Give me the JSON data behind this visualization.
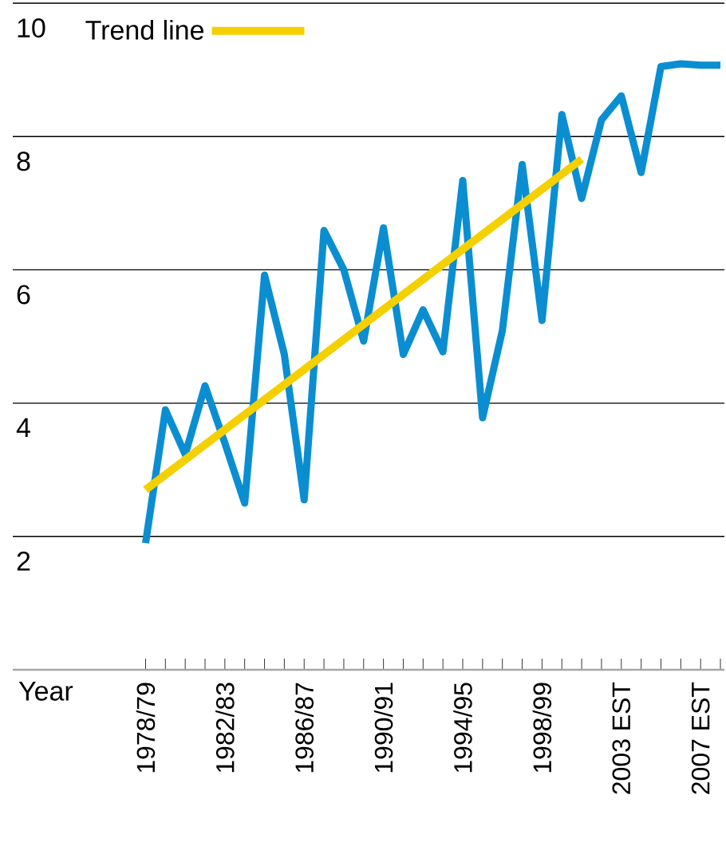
{
  "chart_data": {
    "type": "line",
    "xlabel": "Year",
    "categories": [
      "1978/79",
      null,
      null,
      null,
      "1982/83",
      null,
      null,
      null,
      "1986/87",
      null,
      null,
      null,
      "1990/91",
      null,
      null,
      null,
      "1994/95",
      null,
      null,
      null,
      "1998/99",
      null,
      null,
      null,
      "2003 EST",
      null,
      null,
      null,
      "2007 EST",
      null
    ],
    "series": [
      {
        "color": "#0a8ed1",
        "values": [
          1.9,
          3.9,
          3.23,
          4.26,
          3.4,
          2.5,
          5.92,
          4.73,
          2.55,
          6.59,
          6.0,
          4.93,
          6.63,
          4.73,
          5.4,
          4.77,
          7.34,
          3.78,
          5.09,
          7.58,
          5.24,
          8.33,
          7.07,
          8.25,
          8.61,
          7.46,
          9.05,
          9.09,
          9.07,
          9.07
        ]
      },
      {
        "name": "Trend line",
        "type": "line",
        "color": "#f5d000",
        "values": [
          2.7,
          null,
          null,
          null,
          null,
          null,
          null,
          null,
          null,
          null,
          null,
          null,
          null,
          null,
          null,
          null,
          null,
          null,
          null,
          null,
          null,
          null,
          7.66,
          null,
          null,
          null,
          null,
          null,
          null,
          null
        ]
      }
    ],
    "ylim": [
      0,
      10
    ],
    "yticks": [
      2,
      4,
      6,
      8,
      10
    ],
    "grid": "y",
    "legend": "top left",
    "line_style": "solid",
    "marker": "none"
  }
}
